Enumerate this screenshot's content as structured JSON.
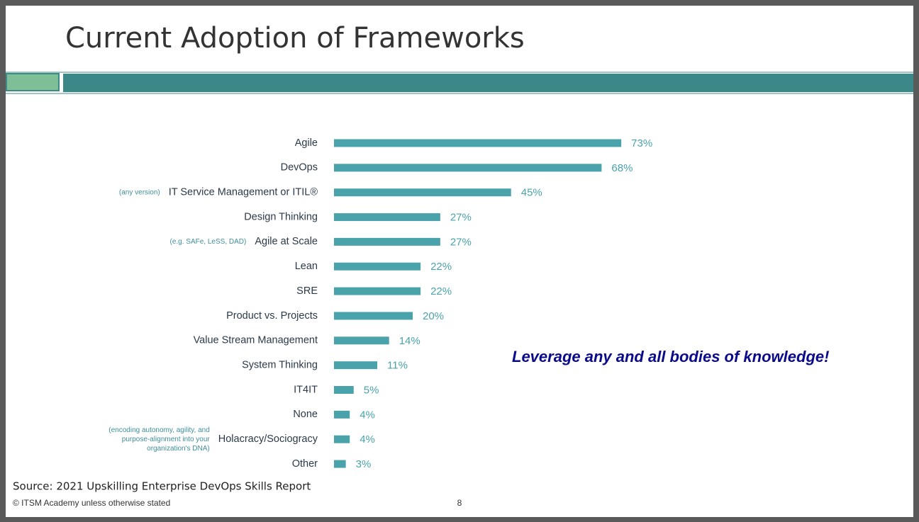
{
  "title": "Current Adoption of Frameworks",
  "callout": "Leverage any and all bodies of knowledge!",
  "source": "Source: 2021 Upskilling Enterprise DevOps Skills Report",
  "copyright": "© ITSM Academy unless otherwise stated",
  "page_number": 8,
  "chart_data": {
    "type": "bar",
    "orientation": "horizontal",
    "color": "#4aa3ab",
    "categories": [
      "Agile",
      "DevOps",
      "IT Service Management or ITIL®",
      "Design Thinking",
      "Agile at Scale",
      "Lean",
      "SRE",
      "Product vs. Projects",
      "Value Stream Management",
      "System Thinking",
      "IT4IT",
      "None",
      "Holacracy/Sociogracy",
      "Other"
    ],
    "values": [
      73,
      68,
      45,
      27,
      27,
      22,
      22,
      20,
      14,
      11,
      5,
      4,
      4,
      3
    ],
    "value_labels": [
      "73%",
      "68%",
      "45%",
      "27%",
      "27%",
      "22%",
      "22%",
      "20%",
      "14%",
      "11%",
      "5%",
      "4%",
      "4%",
      "3%"
    ],
    "category_notes": [
      null,
      null,
      [
        "(any version)"
      ],
      null,
      [
        "(e.g. SAFe, LeSS, DAD)"
      ],
      null,
      null,
      null,
      null,
      null,
      null,
      null,
      [
        "(encoding autonomy, agility, and",
        "purpose-alignment into your",
        "organization's DNA)"
      ],
      null
    ]
  }
}
